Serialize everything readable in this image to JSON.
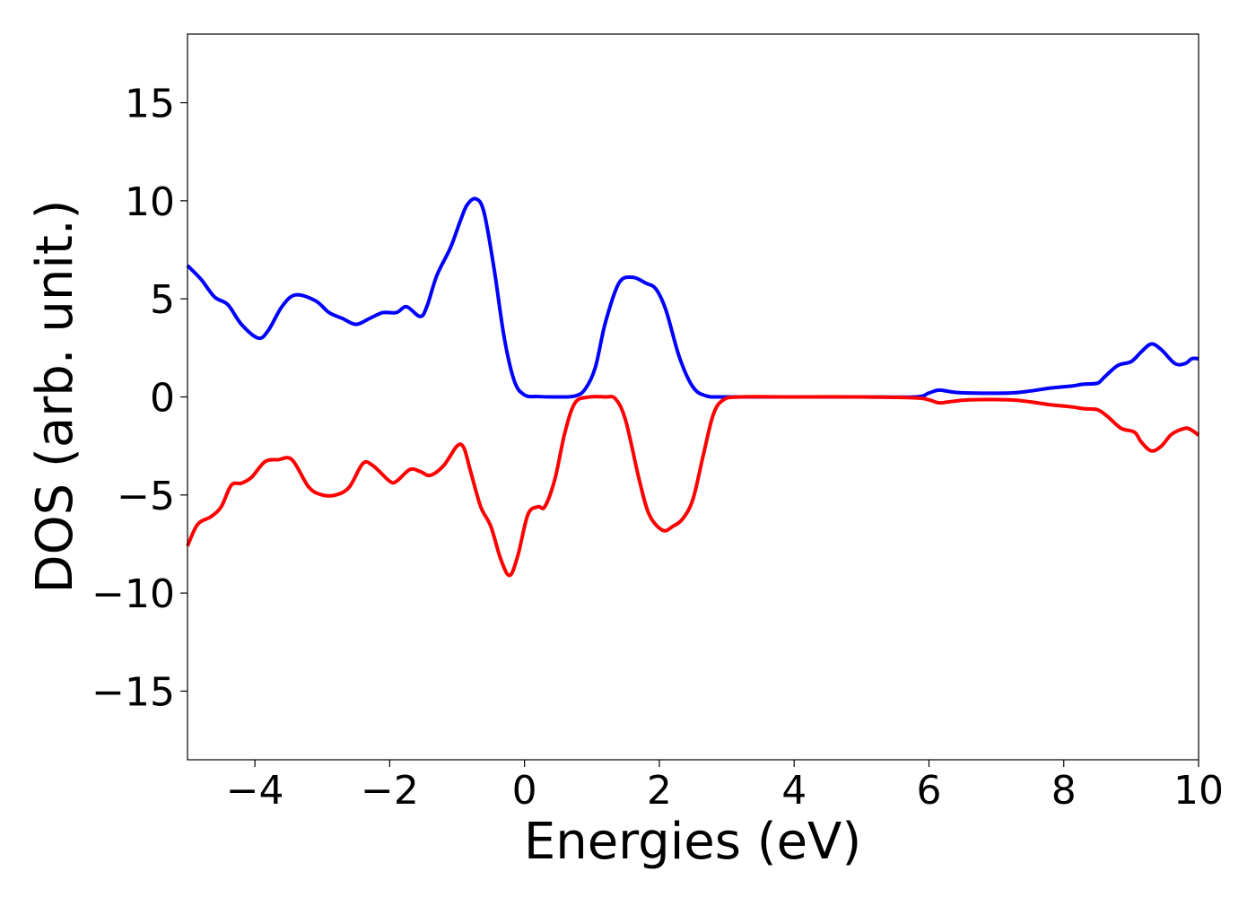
{
  "chart_data": {
    "type": "line",
    "title": "",
    "xlabel": "Energies (eV)",
    "ylabel": "DOS (arb. unit.)",
    "xlim": [
      -5,
      10
    ],
    "ylim": [
      -18.5,
      18.5
    ],
    "grid": false,
    "legend": "none",
    "x_ticks": [
      -4,
      -2,
      0,
      2,
      4,
      6,
      8,
      10
    ],
    "x_tick_labels": [
      "−4",
      "−2",
      "0",
      "2",
      "4",
      "6",
      "8",
      "10"
    ],
    "y_ticks": [
      15,
      10,
      5,
      0,
      -5,
      -10,
      -15
    ],
    "y_tick_labels": [
      "15",
      "10",
      "5",
      "0",
      "−5",
      "−10",
      "−15"
    ],
    "series": [
      {
        "color": "#0000ff",
        "points": [
          [
            -5.0,
            6.7
          ],
          [
            -4.8,
            6.0
          ],
          [
            -4.6,
            5.1
          ],
          [
            -4.4,
            4.7
          ],
          [
            -4.2,
            3.7
          ],
          [
            -3.95,
            3.0
          ],
          [
            -3.8,
            3.4
          ],
          [
            -3.6,
            4.6
          ],
          [
            -3.4,
            5.2
          ],
          [
            -3.1,
            4.9
          ],
          [
            -2.9,
            4.3
          ],
          [
            -2.7,
            4.0
          ],
          [
            -2.5,
            3.7
          ],
          [
            -2.3,
            4.0
          ],
          [
            -2.1,
            4.3
          ],
          [
            -1.9,
            4.3
          ],
          [
            -1.75,
            4.6
          ],
          [
            -1.55,
            4.1
          ],
          [
            -1.45,
            4.6
          ],
          [
            -1.3,
            6.2
          ],
          [
            -1.1,
            7.6
          ],
          [
            -0.95,
            9.0
          ],
          [
            -0.85,
            9.8
          ],
          [
            -0.72,
            10.1
          ],
          [
            -0.6,
            9.4
          ],
          [
            -0.45,
            6.5
          ],
          [
            -0.3,
            3.0
          ],
          [
            -0.15,
            0.8
          ],
          [
            0.0,
            0.1
          ],
          [
            0.2,
            0.02
          ],
          [
            0.5,
            0.0
          ],
          [
            0.75,
            0.05
          ],
          [
            0.9,
            0.4
          ],
          [
            1.05,
            1.5
          ],
          [
            1.2,
            3.8
          ],
          [
            1.4,
            5.8
          ],
          [
            1.6,
            6.1
          ],
          [
            1.8,
            5.8
          ],
          [
            1.95,
            5.5
          ],
          [
            2.1,
            4.4
          ],
          [
            2.3,
            2.0
          ],
          [
            2.5,
            0.5
          ],
          [
            2.7,
            0.05
          ],
          [
            3.0,
            0.0
          ],
          [
            4.0,
            0.0
          ],
          [
            5.0,
            0.0
          ],
          [
            5.8,
            0.0
          ],
          [
            6.0,
            0.2
          ],
          [
            6.15,
            0.35
          ],
          [
            6.35,
            0.25
          ],
          [
            6.6,
            0.2
          ],
          [
            7.2,
            0.2
          ],
          [
            7.5,
            0.3
          ],
          [
            7.8,
            0.45
          ],
          [
            8.1,
            0.55
          ],
          [
            8.3,
            0.65
          ],
          [
            8.5,
            0.7
          ],
          [
            8.6,
            1.0
          ],
          [
            8.8,
            1.6
          ],
          [
            9.0,
            1.8
          ],
          [
            9.15,
            2.3
          ],
          [
            9.3,
            2.7
          ],
          [
            9.45,
            2.4
          ],
          [
            9.65,
            1.7
          ],
          [
            9.8,
            1.7
          ],
          [
            9.9,
            1.95
          ],
          [
            10.0,
            1.95
          ]
        ]
      },
      {
        "color": "#ff0000",
        "points": [
          [
            -5.0,
            -7.6
          ],
          [
            -4.85,
            -6.5
          ],
          [
            -4.65,
            -6.1
          ],
          [
            -4.5,
            -5.6
          ],
          [
            -4.35,
            -4.5
          ],
          [
            -4.2,
            -4.4
          ],
          [
            -4.05,
            -4.1
          ],
          [
            -3.85,
            -3.3
          ],
          [
            -3.65,
            -3.2
          ],
          [
            -3.45,
            -3.2
          ],
          [
            -3.2,
            -4.6
          ],
          [
            -3.0,
            -5.0
          ],
          [
            -2.8,
            -5.0
          ],
          [
            -2.6,
            -4.6
          ],
          [
            -2.4,
            -3.4
          ],
          [
            -2.25,
            -3.5
          ],
          [
            -2.0,
            -4.3
          ],
          [
            -1.9,
            -4.3
          ],
          [
            -1.7,
            -3.7
          ],
          [
            -1.55,
            -3.8
          ],
          [
            -1.4,
            -4.0
          ],
          [
            -1.2,
            -3.5
          ],
          [
            -1.0,
            -2.5
          ],
          [
            -0.9,
            -2.6
          ],
          [
            -0.8,
            -3.8
          ],
          [
            -0.65,
            -5.6
          ],
          [
            -0.5,
            -6.6
          ],
          [
            -0.35,
            -8.3
          ],
          [
            -0.22,
            -9.1
          ],
          [
            -0.1,
            -8.1
          ],
          [
            0.05,
            -6.0
          ],
          [
            0.2,
            -5.6
          ],
          [
            0.3,
            -5.6
          ],
          [
            0.45,
            -4.2
          ],
          [
            0.6,
            -1.8
          ],
          [
            0.75,
            -0.3
          ],
          [
            0.95,
            -0.01
          ],
          [
            1.2,
            0.0
          ],
          [
            1.35,
            -0.1
          ],
          [
            1.5,
            -1.2
          ],
          [
            1.7,
            -4.2
          ],
          [
            1.85,
            -6.0
          ],
          [
            2.05,
            -6.8
          ],
          [
            2.2,
            -6.6
          ],
          [
            2.35,
            -6.2
          ],
          [
            2.5,
            -5.2
          ],
          [
            2.65,
            -3.0
          ],
          [
            2.8,
            -0.9
          ],
          [
            2.95,
            -0.15
          ],
          [
            3.2,
            0.0
          ],
          [
            4.0,
            0.0
          ],
          [
            5.0,
            0.0
          ],
          [
            5.8,
            -0.05
          ],
          [
            6.0,
            -0.15
          ],
          [
            6.15,
            -0.3
          ],
          [
            6.3,
            -0.25
          ],
          [
            6.6,
            -0.15
          ],
          [
            7.2,
            -0.15
          ],
          [
            7.5,
            -0.25
          ],
          [
            7.8,
            -0.4
          ],
          [
            8.1,
            -0.5
          ],
          [
            8.3,
            -0.6
          ],
          [
            8.5,
            -0.65
          ],
          [
            8.65,
            -1.0
          ],
          [
            8.85,
            -1.6
          ],
          [
            9.05,
            -1.8
          ],
          [
            9.15,
            -2.3
          ],
          [
            9.3,
            -2.75
          ],
          [
            9.45,
            -2.5
          ],
          [
            9.6,
            -1.9
          ],
          [
            9.8,
            -1.6
          ],
          [
            9.9,
            -1.7
          ],
          [
            10.0,
            -1.95
          ]
        ]
      }
    ]
  }
}
